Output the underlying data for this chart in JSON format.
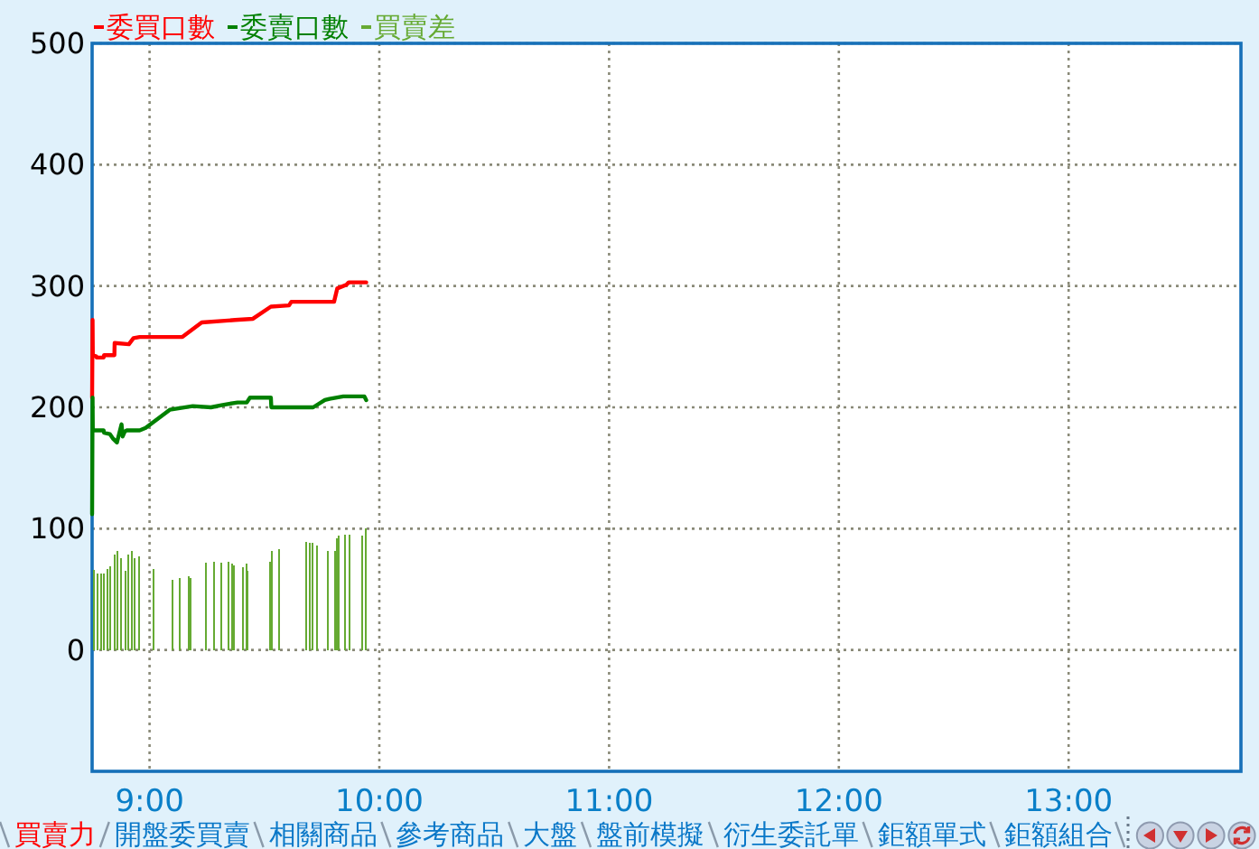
{
  "chart_data": {
    "type": "line",
    "legend": "top left",
    "grid": true,
    "xlim": [
      8.75,
      13.75
    ],
    "xticks": [
      {
        "value": 9,
        "label": "9:00"
      },
      {
        "value": 10,
        "label": "10:00"
      },
      {
        "value": 11,
        "label": "11:00"
      },
      {
        "value": 12,
        "label": "12:00"
      },
      {
        "value": 13,
        "label": "13:00"
      }
    ],
    "ylim": [
      -100,
      500
    ],
    "yticks": [
      0,
      100,
      200,
      300,
      400,
      500
    ],
    "series": [
      {
        "name": "委買口數",
        "color": "#ff0000",
        "x": [
          8.75,
          8.752,
          8.753,
          8.768,
          8.77,
          8.8,
          8.802,
          8.847,
          8.848,
          8.91,
          8.93,
          8.957,
          9.143,
          9.227,
          9.372,
          9.45,
          9.528,
          9.607,
          9.617,
          9.803,
          9.817,
          9.857,
          9.867,
          9.943
        ],
        "values": [
          208,
          272,
          243,
          242,
          241,
          241,
          243,
          243,
          253,
          252,
          257,
          258,
          258,
          270,
          272,
          273,
          283,
          284,
          287,
          287,
          298,
          301,
          303,
          303
        ]
      },
      {
        "name": "委賣口數",
        "color": "#008000",
        "x": [
          8.75,
          8.752,
          8.753,
          8.8,
          8.802,
          8.827,
          8.842,
          8.858,
          8.878,
          8.883,
          8.892,
          8.9,
          8.957,
          8.983,
          9.088,
          9.188,
          9.267,
          9.318,
          9.383,
          9.423,
          9.437,
          9.528,
          9.53,
          9.712,
          9.763,
          9.783,
          9.843,
          9.935,
          9.943
        ],
        "values": [
          112,
          208,
          181,
          181,
          179,
          178,
          174,
          171,
          186,
          176,
          180,
          181,
          181,
          183,
          198,
          201,
          200,
          202,
          204,
          204,
          208,
          208,
          200,
          200,
          206,
          207,
          209,
          209,
          206
        ]
      },
      {
        "name": "買賣差",
        "type": "bar",
        "color": "#66aa33",
        "x": [
          8.759,
          8.774,
          8.788,
          8.802,
          8.816,
          8.83,
          8.847,
          8.86,
          8.874,
          8.894,
          8.907,
          8.921,
          8.936,
          8.954,
          9.017,
          9.098,
          9.13,
          9.169,
          9.177,
          9.244,
          9.279,
          9.311,
          9.342,
          9.358,
          9.366,
          9.405,
          9.421,
          9.428,
          9.523,
          9.531,
          9.562,
          9.68,
          9.696,
          9.711,
          9.727,
          9.774,
          9.806,
          9.814,
          9.822,
          9.849,
          9.869,
          9.924,
          9.94
        ],
        "values": [
          66,
          63,
          63,
          63,
          67,
          69,
          79,
          82,
          76,
          65,
          79,
          82,
          76,
          77,
          67,
          58,
          59,
          61,
          59,
          72,
          73,
          72,
          73,
          71,
          70,
          68,
          71,
          65,
          73,
          82,
          83,
          89,
          88,
          88,
          86,
          82,
          82,
          92,
          94,
          95,
          95,
          94,
          100
        ]
      }
    ],
    "annotations": [
      "買賣力",
      "開盤委買賣",
      "相關商品",
      "參考商品",
      "大盤",
      "盤前模擬",
      "衍生委託單",
      "鉅額單式",
      "鉅額組合"
    ]
  }
}
